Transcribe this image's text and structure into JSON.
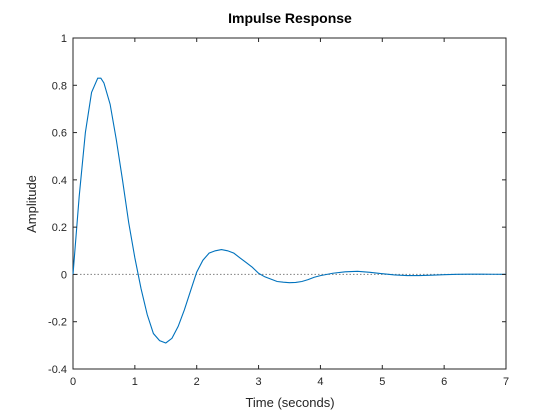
{
  "chart_data": {
    "type": "line",
    "title": "Impulse Response",
    "xlabel": "Time (seconds)",
    "ylabel": "Amplitude",
    "xlim": [
      0,
      7
    ],
    "ylim": [
      -0.4,
      1
    ],
    "grid": false,
    "xticks": [
      0,
      1,
      2,
      3,
      4,
      5,
      6,
      7
    ],
    "xtick_labels": [
      "0",
      "1",
      "2",
      "3",
      "4",
      "5",
      "6",
      "7"
    ],
    "yticks": [
      -0.4,
      -0.2,
      0,
      0.2,
      0.4,
      0.6,
      0.8,
      1
    ],
    "ytick_labels": [
      "-0.4",
      "-0.2",
      "0",
      "0.2",
      "0.4",
      "0.6",
      "0.8",
      "1"
    ],
    "reference_line": {
      "y": 0,
      "style": "dotted",
      "color": "#808080"
    },
    "series": [
      {
        "color": "#0072BD",
        "x": [
          0,
          0.1,
          0.2,
          0.3,
          0.4,
          0.45,
          0.5,
          0.6,
          0.7,
          0.8,
          0.9,
          1.0,
          1.1,
          1.2,
          1.3,
          1.4,
          1.5,
          1.6,
          1.7,
          1.8,
          1.9,
          2.0,
          2.1,
          2.2,
          2.3,
          2.4,
          2.5,
          2.6,
          2.7,
          2.8,
          2.9,
          3.0,
          3.1,
          3.2,
          3.3,
          3.4,
          3.5,
          3.6,
          3.7,
          3.8,
          3.9,
          4.0,
          4.2,
          4.4,
          4.6,
          4.8,
          5.0,
          5.2,
          5.4,
          5.6,
          5.8,
          6.0,
          6.2,
          6.4,
          6.6,
          6.8,
          7.0
        ],
        "y": [
          0,
          0.33,
          0.6,
          0.77,
          0.83,
          0.83,
          0.81,
          0.72,
          0.57,
          0.4,
          0.22,
          0.07,
          -0.06,
          -0.17,
          -0.25,
          -0.28,
          -0.29,
          -0.27,
          -0.22,
          -0.15,
          -0.07,
          0.01,
          0.06,
          0.09,
          0.1,
          0.105,
          0.1,
          0.09,
          0.07,
          0.05,
          0.03,
          0.005,
          -0.01,
          -0.02,
          -0.03,
          -0.033,
          -0.035,
          -0.034,
          -0.03,
          -0.022,
          -0.012,
          -0.005,
          0.005,
          0.011,
          0.013,
          0.009,
          0.003,
          -0.002,
          -0.005,
          -0.005,
          -0.003,
          -0.001,
          0.0005,
          0.001,
          0.001,
          0.0008,
          0.0005
        ]
      }
    ]
  }
}
